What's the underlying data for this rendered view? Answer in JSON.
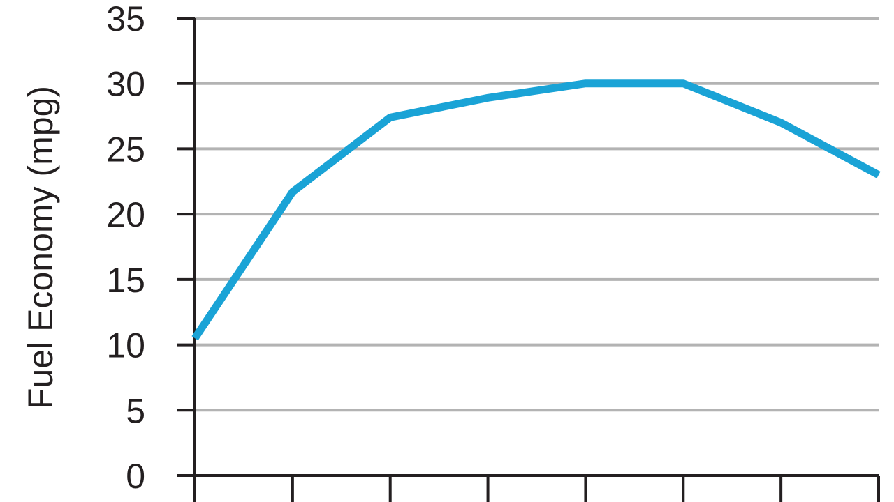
{
  "chart_data": {
    "type": "line",
    "title": "",
    "xlabel": "",
    "ylabel": "Fuel Economy (mpg)",
    "ylim": [
      0,
      35
    ],
    "yticks": [
      0,
      5,
      10,
      15,
      20,
      25,
      30,
      35
    ],
    "ytick_labels": [
      "0",
      "5",
      "10",
      "15",
      "20",
      "25",
      "30",
      "35"
    ],
    "x": [
      0,
      1,
      2,
      3,
      4,
      5,
      6,
      7
    ],
    "xlim": [
      0,
      7
    ],
    "xtick_labels": [],
    "grid": true,
    "series": [
      {
        "values": [
          10.5,
          21.7,
          27.4,
          28.9,
          30.0,
          30.0,
          27.0,
          23.0
        ],
        "color": "#1aa3d6"
      }
    ],
    "colors": {
      "axis": "#231f20",
      "grid": "#b3b3b3",
      "line": "#1aa3d6",
      "text": "#231f20"
    }
  }
}
